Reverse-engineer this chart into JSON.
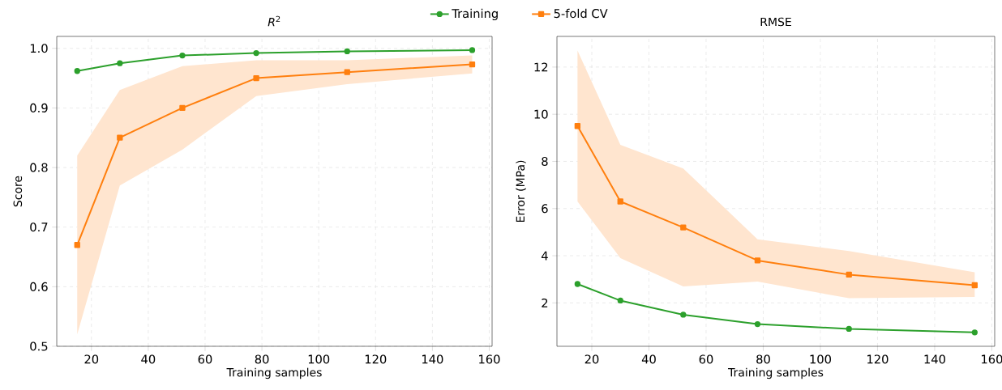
{
  "chart_data": [
    {
      "type": "line",
      "title": "*R*$^{2}$",
      "xlabel": "Training samples",
      "ylabel": "Score",
      "x": [
        15,
        30,
        52,
        78,
        110,
        154
      ],
      "series": [
        {
          "name": "Training",
          "color": "#2ca02c",
          "marker": "circle",
          "values": [
            0.962,
            0.975,
            0.988,
            0.992,
            0.995,
            0.997
          ]
        },
        {
          "name": "5-fold CV",
          "color": "#ff7f0e",
          "marker": "square",
          "values": [
            0.67,
            0.85,
            0.9,
            0.95,
            0.96,
            0.973
          ],
          "lower": [
            0.52,
            0.77,
            0.83,
            0.92,
            0.94,
            0.958
          ],
          "upper": [
            0.82,
            0.93,
            0.97,
            0.98,
            0.98,
            0.988
          ]
        }
      ],
      "xlim": [
        7.8,
        161
      ],
      "ylim": [
        0.5,
        1.02
      ],
      "xticks": [
        20,
        40,
        60,
        80,
        100,
        120,
        140,
        160
      ],
      "yticks": [
        0.5,
        0.6,
        0.7,
        0.8,
        0.9,
        {
          "value": 1.0,
          "label": "1.0"
        }
      ],
      "grid": true,
      "legend": "top",
      "line_style": "solid"
    },
    {
      "type": "line",
      "title": "RMSE",
      "xlabel": "Training samples",
      "ylabel": "Error (MPa)",
      "x": [
        15,
        30,
        52,
        78,
        110,
        154
      ],
      "series": [
        {
          "color": "#2ca02c",
          "marker": "circle",
          "values": [
            2.8,
            2.1,
            1.5,
            1.1,
            0.9,
            0.75
          ]
        },
        {
          "color": "#ff7f0e",
          "marker": "square",
          "values": [
            9.5,
            6.3,
            5.2,
            3.8,
            3.2,
            2.75
          ],
          "lower": [
            6.3,
            3.9,
            2.7,
            2.9,
            2.2,
            2.25
          ],
          "upper": [
            12.7,
            8.7,
            7.7,
            4.7,
            4.2,
            3.3
          ]
        }
      ],
      "xlim": [
        7.8,
        161
      ],
      "ylim": [
        0.16,
        13.3
      ],
      "xticks": [
        20,
        40,
        60,
        80,
        100,
        120,
        140,
        160
      ],
      "yticks": [
        2,
        4,
        6,
        8,
        10,
        12
      ],
      "grid": true,
      "line_style": "solid"
    }
  ]
}
